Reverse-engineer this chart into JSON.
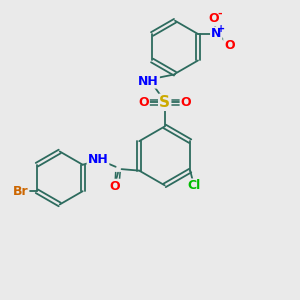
{
  "background_color": "#eaeaea",
  "bond_color": "#2d6b5e",
  "atom_colors": {
    "N": "#0000ff",
    "O": "#ff0000",
    "S": "#ccaa00",
    "Cl": "#00bb00",
    "Br": "#cc6600"
  },
  "font_size": 9,
  "bond_width": 1.3
}
